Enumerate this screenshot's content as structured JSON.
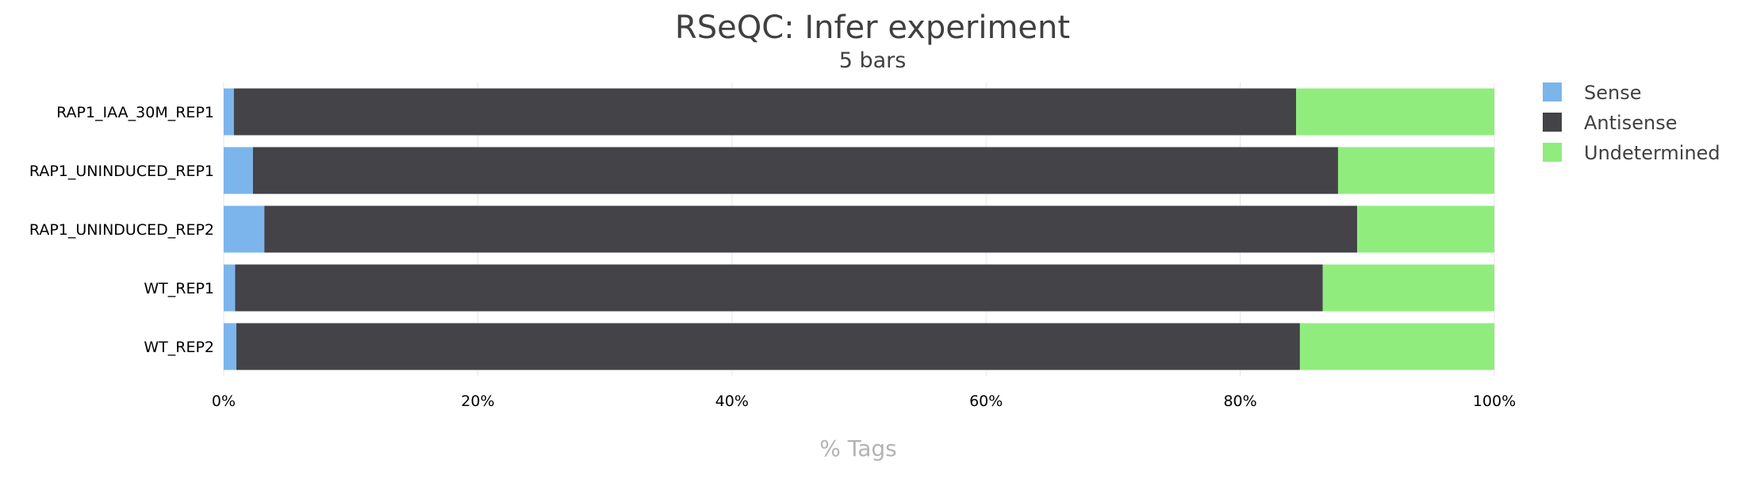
{
  "chart_data": {
    "type": "bar",
    "orientation": "horizontal",
    "stacked": true,
    "percent": true,
    "title": "RSeQC: Infer experiment",
    "subtitle": "5 bars",
    "xlabel": "% Tags",
    "ylabel": "",
    "xlim": [
      0,
      100
    ],
    "x_ticks": [
      "0%",
      "20%",
      "40%",
      "60%",
      "80%",
      "100%"
    ],
    "x_tick_values": [
      0,
      20,
      40,
      60,
      80,
      100
    ],
    "grid": true,
    "legend_position": "right",
    "categories": [
      "RAP1_IAA_30M_REP1",
      "RAP1_UNINDUCED_REP1",
      "RAP1_UNINDUCED_REP2",
      "WT_REP1",
      "WT_REP2"
    ],
    "series": [
      {
        "name": "Sense",
        "color": "#7cb5ec",
        "values": [
          0.8,
          2.3,
          3.2,
          0.9,
          1.0
        ]
      },
      {
        "name": "Antisense",
        "color": "#434348",
        "values": [
          83.6,
          85.4,
          86.0,
          85.6,
          83.7
        ]
      },
      {
        "name": "Undetermined",
        "color": "#90ed7d",
        "values": [
          15.6,
          12.3,
          10.8,
          13.5,
          15.3
        ]
      }
    ]
  }
}
